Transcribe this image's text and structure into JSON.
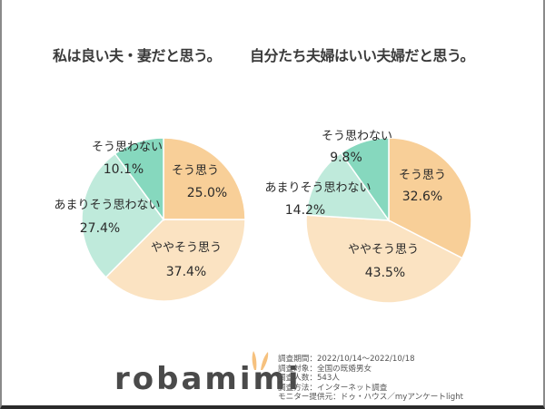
{
  "chart_data": [
    {
      "type": "pie",
      "title": "私は良い夫・妻だと思う。",
      "categories": [
        "そう思う",
        "ややそう思う",
        "あまりそう思わない",
        "そう思わない"
      ],
      "values": [
        25.0,
        37.4,
        27.4,
        10.1
      ],
      "labels": [
        "25.0%",
        "37.4%",
        "27.4%",
        "10.1%"
      ],
      "colors": [
        "#f8cf98",
        "#fbe3c2",
        "#bfeadb",
        "#86d8be"
      ],
      "start_angle": "12 o'clock, clockwise"
    },
    {
      "type": "pie",
      "title": "自分たち夫婦はいい夫婦だと思う。",
      "categories": [
        "そう思う",
        "ややそう思う",
        "あまりそう思わない",
        "そう思わない"
      ],
      "values": [
        32.6,
        43.5,
        14.2,
        9.8
      ],
      "labels": [
        "32.6%",
        "43.5%",
        "14.2%",
        "9.8%"
      ],
      "colors": [
        "#f8cf98",
        "#fbe3c2",
        "#bfeadb",
        "#86d8be"
      ],
      "start_angle": "12 o'clock, clockwise"
    }
  ],
  "titles": {
    "left": "私は良い夫・妻だと思う。",
    "right": "自分たち夫婦はいい夫婦だと思う。"
  },
  "logo": {
    "text": "robamimi",
    "accent_color": "#f6c17e"
  },
  "survey_notes": [
    "調査期間：2022/10/14～2022/10/18",
    "調査対象：全国の既婚男女",
    "調査人数：543人",
    "調査方法：インターネット調査",
    "モニター提供元：ドゥ・ハウス／myアンケートlight"
  ]
}
